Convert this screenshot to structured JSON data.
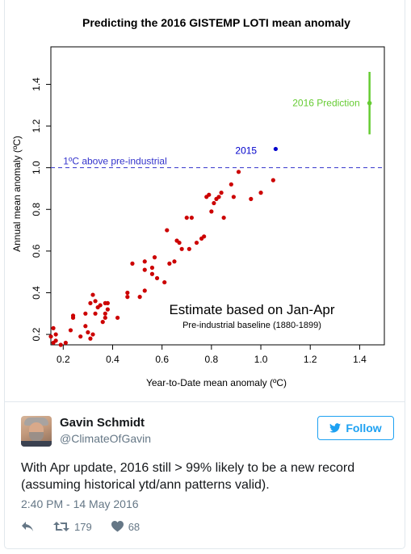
{
  "chart_data": {
    "type": "scatter",
    "title": "Predicting the 2016 GISTEMP LOTI mean anomaly",
    "xlabel": "Year-to-Date mean anomaly (ºC)",
    "ylabel": "Annual mean anomaly (ºC)",
    "xlim": [
      0.15,
      1.5
    ],
    "ylim": [
      0.15,
      1.58
    ],
    "x_ticks": [
      "0.2",
      "0.4",
      "0.6",
      "0.8",
      "1.0",
      "1.2",
      "1.4"
    ],
    "y_ticks": [
      "0.2",
      "0.4",
      "0.6",
      "0.8",
      "1.0",
      "1.2",
      "1.4"
    ],
    "reference_line": {
      "y": 1.0,
      "label": "1ºC above pre-industrial",
      "color": "#3333cc"
    },
    "series": [
      {
        "color": "#cc0000",
        "points": [
          [
            0.15,
            0.19
          ],
          [
            0.16,
            0.23
          ],
          [
            0.16,
            0.16
          ],
          [
            0.17,
            0.17
          ],
          [
            0.17,
            0.2
          ],
          [
            0.19,
            0.15
          ],
          [
            0.21,
            0.16
          ],
          [
            0.23,
            0.22
          ],
          [
            0.24,
            0.29
          ],
          [
            0.24,
            0.28
          ],
          [
            0.27,
            0.19
          ],
          [
            0.29,
            0.3
          ],
          [
            0.29,
            0.24
          ],
          [
            0.3,
            0.21
          ],
          [
            0.31,
            0.35
          ],
          [
            0.31,
            0.18
          ],
          [
            0.32,
            0.2
          ],
          [
            0.32,
            0.39
          ],
          [
            0.33,
            0.36
          ],
          [
            0.33,
            0.3
          ],
          [
            0.34,
            0.33
          ],
          [
            0.35,
            0.34
          ],
          [
            0.36,
            0.26
          ],
          [
            0.37,
            0.28
          ],
          [
            0.37,
            0.3
          ],
          [
            0.37,
            0.35
          ],
          [
            0.38,
            0.35
          ],
          [
            0.38,
            0.32
          ],
          [
            0.42,
            0.28
          ],
          [
            0.46,
            0.4
          ],
          [
            0.46,
            0.38
          ],
          [
            0.48,
            0.54
          ],
          [
            0.51,
            0.38
          ],
          [
            0.53,
            0.55
          ],
          [
            0.53,
            0.41
          ],
          [
            0.53,
            0.51
          ],
          [
            0.56,
            0.52
          ],
          [
            0.56,
            0.49
          ],
          [
            0.57,
            0.57
          ],
          [
            0.58,
            0.47
          ],
          [
            0.61,
            0.45
          ],
          [
            0.62,
            0.7
          ],
          [
            0.63,
            0.54
          ],
          [
            0.65,
            0.55
          ],
          [
            0.66,
            0.65
          ],
          [
            0.67,
            0.64
          ],
          [
            0.68,
            0.61
          ],
          [
            0.7,
            0.76
          ],
          [
            0.71,
            0.61
          ],
          [
            0.72,
            0.76
          ],
          [
            0.74,
            0.64
          ],
          [
            0.76,
            0.66
          ],
          [
            0.77,
            0.67
          ],
          [
            0.78,
            0.86
          ],
          [
            0.79,
            0.87
          ],
          [
            0.8,
            0.79
          ],
          [
            0.81,
            0.83
          ],
          [
            0.82,
            0.85
          ],
          [
            0.83,
            0.86
          ],
          [
            0.84,
            0.88
          ],
          [
            0.85,
            0.76
          ],
          [
            0.88,
            0.92
          ],
          [
            0.89,
            0.86
          ],
          [
            0.91,
            0.98
          ],
          [
            0.96,
            0.85
          ],
          [
            1.0,
            0.88
          ],
          [
            1.05,
            0.94
          ]
        ]
      },
      {
        "name": "2015",
        "color": "#0000cc",
        "points": [
          [
            1.06,
            1.09
          ]
        ]
      },
      {
        "name": "2016 Prediction",
        "color": "#66cc33",
        "points": [
          [
            1.44,
            1.31
          ]
        ],
        "error_low": 1.16,
        "error_high": 1.46
      }
    ],
    "annotations": {
      "main": "Estimate based on Jan-Apr",
      "sub": "Pre-industrial baseline (1880-1899)"
    },
    "grid": false,
    "legend": "none"
  },
  "tweet": {
    "author_name": "Gavin Schmidt",
    "author_handle": "@ClimateOfGavin",
    "follow_label": "Follow",
    "text": "With Apr update, 2016 still > 99% likely to be a new record (assuming historical ytd/ann patterns valid).",
    "timestamp": "2:40 PM - 14 May 2016",
    "retweet_count": "179",
    "like_count": "68",
    "accent_color": "#1da1f2"
  }
}
